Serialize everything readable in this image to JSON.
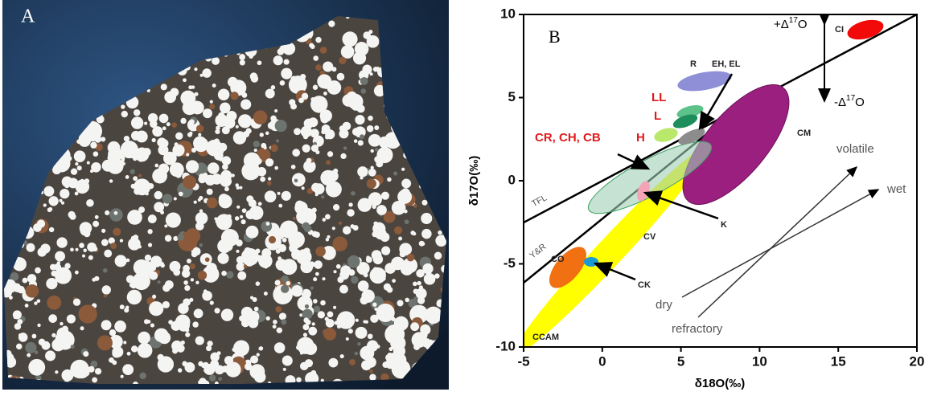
{
  "panel_a": {
    "label": "A"
  },
  "chart_data": {
    "type": "region",
    "panel_label": "B",
    "x_label": "δ18O(‰)",
    "y_label": "δ17O(‰)",
    "xlim": [
      -5,
      20
    ],
    "xticks": [
      -5,
      0,
      5,
      10,
      15,
      20
    ],
    "ylim": [
      -10,
      10
    ],
    "yticks": [
      -10,
      -5,
      0,
      5,
      10
    ],
    "annotations": {
      "ci": "CI",
      "r": "R",
      "eh_el": "EH, EL",
      "ll": "LL",
      "l": "L",
      "h": "H",
      "cr_ch_cb": "CR, CH, CB",
      "cm": "CM",
      "k": "K",
      "cv": "CV",
      "co": "CO",
      "ck": "CK",
      "ccam": "CCAM",
      "tfl": "TFL",
      "yr": "Y&R",
      "volatile": "volatile",
      "wet": "wet",
      "dry": "dry",
      "refractory": "refractory",
      "plus_delta": {
        "prefix": "+Δ",
        "sup": "17",
        "suffix": "O"
      },
      "minus_delta": {
        "prefix": "-Δ",
        "sup": "17",
        "suffix": "O"
      }
    }
  }
}
